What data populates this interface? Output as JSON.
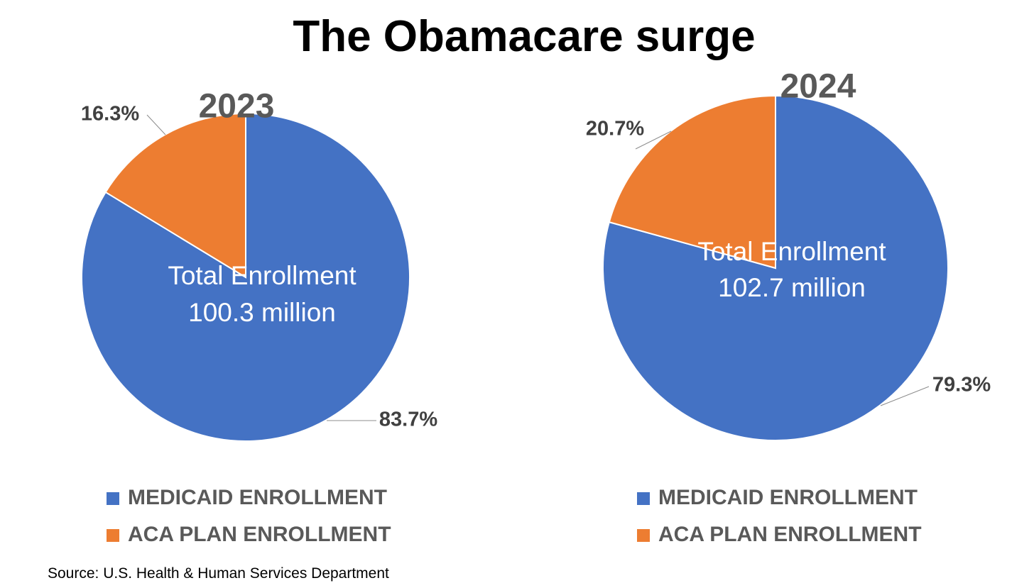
{
  "title": "The Obamacare surge",
  "source": "Source: U.S. Health & Human Services Department",
  "colors": {
    "medicaid": "#4472C4",
    "aca": "#ED7D31"
  },
  "chart_data": [
    {
      "type": "pie",
      "title": "2023",
      "center_label": [
        "Total Enrollment",
        "100.3 million"
      ],
      "slices": [
        {
          "label": "MEDICAID ENROLLMENT",
          "value": 83.7,
          "display": "83.7%",
          "color": "#4472C4"
        },
        {
          "label": "ACA PLAN ENROLLMENT",
          "value": 16.3,
          "display": "16.3%",
          "color": "#ED7D31"
        }
      ],
      "legend": [
        "MEDICAID ENROLLMENT",
        "ACA PLAN ENROLLMENT"
      ],
      "legend_position": "bottom"
    },
    {
      "type": "pie",
      "title": "2024",
      "center_label": [
        "Total Enrollment",
        "102.7 million"
      ],
      "slices": [
        {
          "label": "MEDICAID ENROLLMENT",
          "value": 79.3,
          "display": "79.3%",
          "color": "#4472C4"
        },
        {
          "label": "ACA PLAN ENROLLMENT",
          "value": 20.7,
          "display": "20.7%",
          "color": "#ED7D31"
        }
      ],
      "legend": [
        "MEDICAID ENROLLMENT",
        "ACA PLAN ENROLLMENT"
      ],
      "legend_position": "bottom"
    }
  ]
}
